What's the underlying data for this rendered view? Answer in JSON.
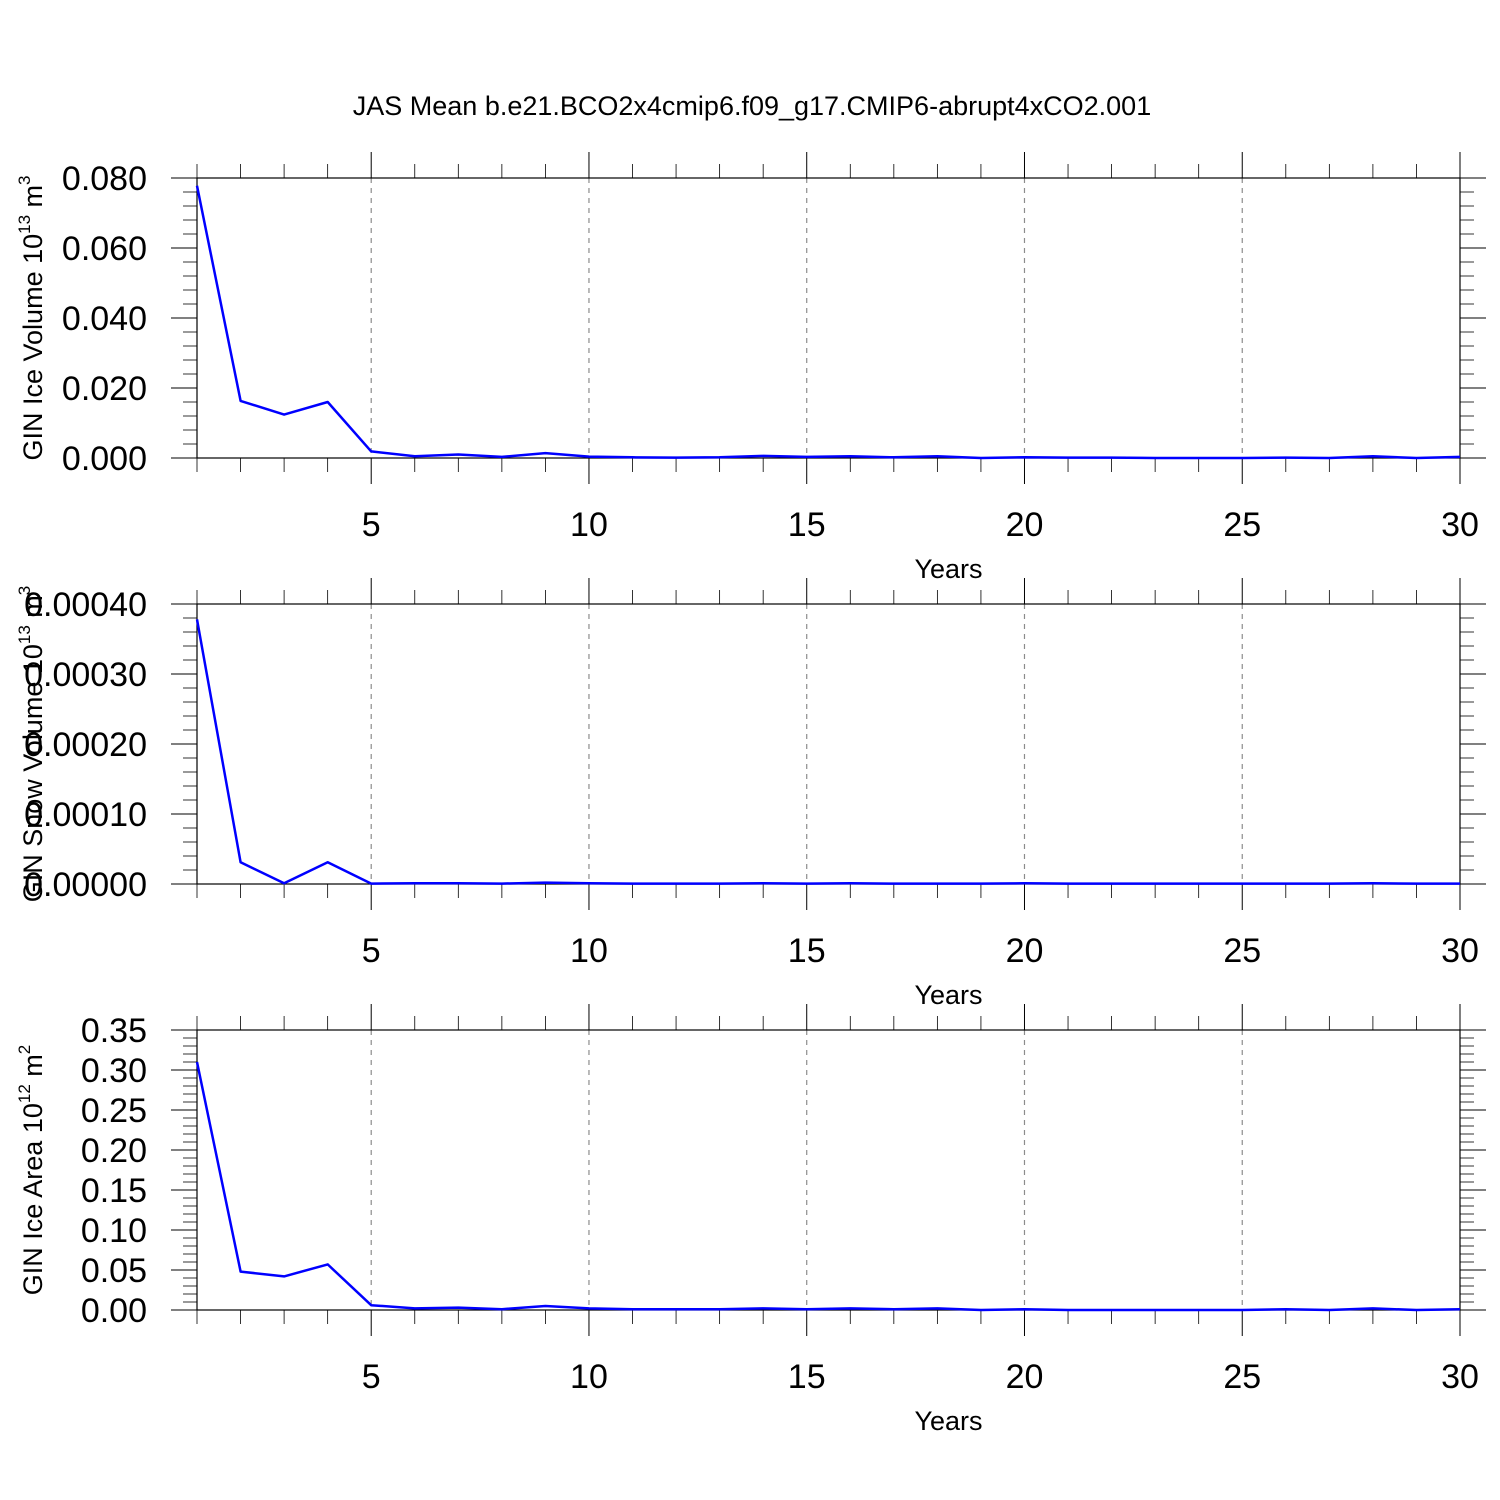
{
  "figure": {
    "title": "JAS Mean b.e21.BCO2x4cmip6.f09_g17.CMIP6-abrupt4xCO2.001"
  },
  "chart_data": [
    {
      "type": "line",
      "xlabel": "Years",
      "ylabel": "GIN Ice Volume 10",
      "ylabel_exp": "13",
      "ylabel_unit": " m",
      "ylabel_unit_exp": "3",
      "xlim": [
        1,
        30
      ],
      "ylim": [
        0,
        0.08
      ],
      "x_ticks": [
        5,
        10,
        15,
        20,
        25,
        30
      ],
      "y_ticks": [
        0,
        0.02,
        0.04,
        0.06,
        0.08
      ],
      "y_tick_labels": [
        "0.000",
        "0.020",
        "0.040",
        "0.060",
        "0.080"
      ],
      "y_minor_step": 0.004,
      "grid": "vertical dashed at major x ticks",
      "series": [
        {
          "color": "#0000ff",
          "x": [
            1,
            2,
            3,
            4,
            5,
            6,
            7,
            8,
            9,
            10,
            11,
            12,
            13,
            14,
            15,
            16,
            17,
            18,
            19,
            20,
            21,
            22,
            23,
            24,
            25,
            26,
            27,
            28,
            29,
            30
          ],
          "y": [
            0.0778,
            0.0163,
            0.0124,
            0.016,
            0.0019,
            0.0005,
            0.001,
            0.0003,
            0.0014,
            0.0004,
            0.0002,
            0.0001,
            0.0002,
            0.0006,
            0.0003,
            0.0005,
            0.0002,
            0.0005,
            0.0,
            0.0002,
            0.0001,
            0.0001,
            0.0,
            0.0,
            0.0,
            0.0001,
            0.0,
            0.0005,
            0.0,
            0.0003
          ]
        }
      ]
    },
    {
      "type": "line",
      "xlabel": "Years",
      "ylabel": "GIN Snow Volume 10",
      "ylabel_exp": "13",
      "ylabel_unit": " m",
      "ylabel_unit_exp": "3",
      "xlim": [
        1,
        30
      ],
      "ylim": [
        0,
        0.0004
      ],
      "x_ticks": [
        5,
        10,
        15,
        20,
        25,
        30
      ],
      "y_ticks": [
        0,
        0.0001,
        0.0002,
        0.0003,
        0.0004
      ],
      "y_tick_labels": [
        "0.00000",
        "0.00010",
        "0.00020",
        "0.00030",
        "0.00040"
      ],
      "y_minor_step": 2e-05,
      "grid": "vertical dashed at major x ticks",
      "series": [
        {
          "color": "#0000ff",
          "x": [
            1,
            2,
            3,
            4,
            5,
            6,
            7,
            8,
            9,
            10,
            11,
            12,
            13,
            14,
            15,
            16,
            17,
            18,
            19,
            20,
            21,
            22,
            23,
            24,
            25,
            26,
            27,
            28,
            29,
            30
          ],
          "y": [
            0.000378,
            3.1e-05,
            1e-06,
            3.1e-05,
            5e-07,
            1e-06,
            1e-06,
            5e-07,
            2e-06,
            1e-06,
            5e-07,
            5e-07,
            5e-07,
            1e-06,
            5e-07,
            1e-06,
            5e-07,
            5e-07,
            5e-07,
            1e-06,
            5e-07,
            5e-07,
            5e-07,
            5e-07,
            5e-07,
            5e-07,
            5e-07,
            1e-06,
            5e-07,
            5e-07
          ]
        }
      ]
    },
    {
      "type": "line",
      "xlabel": "Years",
      "ylabel": "GIN Ice Area 10",
      "ylabel_exp": "12",
      "ylabel_unit": " m",
      "ylabel_unit_exp": "2",
      "xlim": [
        1,
        30
      ],
      "ylim": [
        0,
        0.35
      ],
      "x_ticks": [
        5,
        10,
        15,
        20,
        25,
        30
      ],
      "y_ticks": [
        0,
        0.05,
        0.1,
        0.15,
        0.2,
        0.25,
        0.3,
        0.35
      ],
      "y_tick_labels": [
        "0.00",
        "0.05",
        "0.10",
        "0.15",
        "0.20",
        "0.25",
        "0.30",
        "0.35"
      ],
      "y_minor_step": 0.01,
      "grid": "vertical dashed at major x ticks",
      "series": [
        {
          "color": "#0000ff",
          "x": [
            1,
            2,
            3,
            4,
            5,
            6,
            7,
            8,
            9,
            10,
            11,
            12,
            13,
            14,
            15,
            16,
            17,
            18,
            19,
            20,
            21,
            22,
            23,
            24,
            25,
            26,
            27,
            28,
            29,
            30
          ],
          "y": [
            0.31,
            0.048,
            0.042,
            0.057,
            0.006,
            0.002,
            0.003,
            0.001,
            0.005,
            0.002,
            0.001,
            0.001,
            0.001,
            0.002,
            0.001,
            0.002,
            0.001,
            0.002,
            0.0,
            0.001,
            0.0,
            0.0,
            0.0,
            0.0,
            0.0,
            0.001,
            0.0,
            0.002,
            0.0,
            0.001
          ]
        }
      ]
    }
  ]
}
